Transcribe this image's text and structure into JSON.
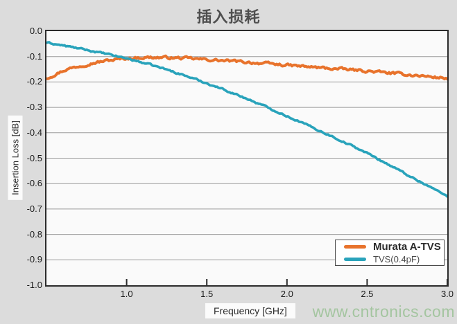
{
  "title": "插入损耗",
  "watermark": "www.cntronics.com",
  "axes": {
    "y_label": "Insertion Loss [dB]",
    "x_label": "Frequency [GHz]",
    "y_ticks": [
      "0.0",
      "-0.1",
      "-0.2",
      "-0.3",
      "-0.4",
      "-0.5",
      "-0.6",
      "-0.7",
      "-0.8",
      "-0.9",
      "-1.0"
    ],
    "x_ticks": [
      "1.0",
      "1.5",
      "2.0",
      "2.5",
      "3.0"
    ]
  },
  "legend": {
    "items": [
      {
        "label": "Murata A-TVS",
        "color": "#E8732C"
      },
      {
        "label": "TVS(0.4pF)",
        "color": "#29A3BB"
      }
    ]
  },
  "colors": {
    "background": "#dcdcdc",
    "plot_background": "#fafafa",
    "grid": "#9a9a9a",
    "frame": "#2b2b2b",
    "series_orange": "#E8732C",
    "series_teal": "#29A3BB",
    "title_text": "#4f4f4f",
    "watermark_text": "#a4c5a0"
  },
  "chart_data": {
    "type": "line",
    "title": "插入损耗",
    "xlabel": "Frequency [GHz]",
    "ylabel": "Insertion Loss [dB]",
    "xlim": [
      0.5,
      3.0
    ],
    "ylim": [
      -1.0,
      0.0
    ],
    "x_tick_values": [
      1.0,
      1.5,
      2.0,
      2.5,
      3.0
    ],
    "y_tick_values": [
      0.0,
      -0.1,
      -0.2,
      -0.3,
      -0.4,
      -0.5,
      -0.6,
      -0.7,
      -0.8,
      -0.9,
      -1.0
    ],
    "grid": "horizontal",
    "legend_position": "lower-right",
    "x": [
      0.5,
      0.625,
      0.75,
      0.875,
      1.0,
      1.125,
      1.25,
      1.375,
      1.5,
      1.625,
      1.75,
      1.875,
      2.0,
      2.125,
      2.25,
      2.375,
      2.5,
      2.625,
      2.75,
      2.875,
      3.0
    ],
    "series": [
      {
        "name": "Murata A-TVS",
        "color": "#E8732C",
        "noisy": true,
        "values": [
          -0.185,
          -0.15,
          -0.13,
          -0.116,
          -0.107,
          -0.103,
          -0.104,
          -0.107,
          -0.112,
          -0.117,
          -0.122,
          -0.128,
          -0.134,
          -0.14,
          -0.146,
          -0.151,
          -0.157,
          -0.164,
          -0.171,
          -0.178,
          -0.186
        ]
      },
      {
        "name": "TVS(0.4pF)",
        "color": "#29A3BB",
        "noisy": true,
        "values": [
          -0.045,
          -0.059,
          -0.074,
          -0.09,
          -0.107,
          -0.128,
          -0.151,
          -0.177,
          -0.205,
          -0.234,
          -0.266,
          -0.299,
          -0.334,
          -0.369,
          -0.405,
          -0.442,
          -0.48,
          -0.522,
          -0.565,
          -0.607,
          -0.65
        ]
      }
    ]
  }
}
